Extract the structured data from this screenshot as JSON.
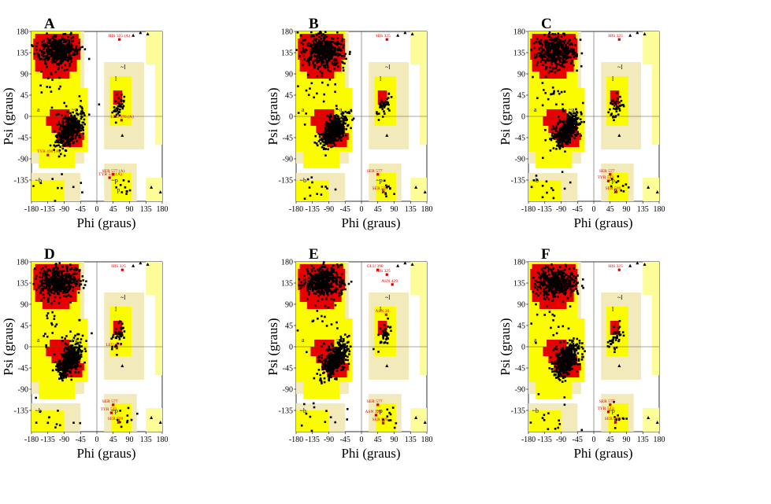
{
  "colors": {
    "core": "#e80000",
    "allowed": "#fcfc00",
    "generous": "#fcfc98",
    "faint": "#f2eabb",
    "outlier": "#d00000",
    "point": "#000000"
  },
  "axis": {
    "xlabel": "Phi (graus)",
    "ylabel": "Psi (graus)",
    "xticks": [
      "-180",
      "-135",
      "-90",
      "-45",
      "0",
      "45",
      "90",
      "135",
      "180"
    ],
    "yticks": [
      "180",
      "135",
      "90",
      "45",
      "0",
      "-45",
      "-90",
      "-135"
    ]
  },
  "chart_data": [
    {
      "type": "scatter",
      "panel": "A",
      "xlabel": "Phi (graus)",
      "ylabel": "Psi (graus)",
      "xlim": [
        -180,
        180
      ],
      "ylim": [
        -180,
        180
      ],
      "region_labels": [
        "b",
        "a",
        "l",
        "~b",
        "~l",
        "~a",
        "~p",
        "p"
      ],
      "outliers": [
        {
          "label": "HIS 325 (A)",
          "phi": 62,
          "psi": 163
        },
        {
          "label": "TYR 490 (A)",
          "phi": -135,
          "psi": -82
        },
        {
          "label": "SER 577 (A)",
          "phi": 45,
          "psi": -123
        },
        {
          "label": "TYR 543 (A)",
          "phi": 35,
          "psi": -130
        },
        {
          "label": "LEU 576 (A)",
          "phi": 68,
          "psi": -8
        }
      ]
    },
    {
      "type": "scatter",
      "panel": "B",
      "xlabel": "Phi (graus)",
      "ylabel": "Psi (graus)",
      "xlim": [
        -180,
        180
      ],
      "ylim": [
        -180,
        180
      ],
      "region_labels": [
        "b",
        "a",
        "l",
        "~b",
        "~l",
        "~a",
        "~p",
        "p"
      ],
      "outliers": [
        {
          "label": "HIS 325",
          "phi": 70,
          "psi": 163
        },
        {
          "label": "SER 577",
          "phi": 45,
          "psi": -123
        },
        {
          "label": "SER 599",
          "phi": 60,
          "psi": -160
        }
      ]
    },
    {
      "type": "scatter",
      "panel": "C",
      "xlabel": "Phi (graus)",
      "ylabel": "Psi (graus)",
      "xlim": [
        -180,
        180
      ],
      "ylim": [
        -180,
        180
      ],
      "region_labels": [
        "b",
        "a",
        "l",
        "~b",
        "~l",
        "~a",
        "~p",
        "p"
      ],
      "outliers": [
        {
          "label": "HIS 325",
          "phi": 70,
          "psi": 163
        },
        {
          "label": "SER 577",
          "phi": 45,
          "psi": -123
        },
        {
          "label": "TYR 543",
          "phi": 40,
          "psi": -137
        },
        {
          "label": "SER 599",
          "phi": 62,
          "psi": -160
        }
      ]
    },
    {
      "type": "scatter",
      "panel": "D",
      "xlabel": "Phi (graus)",
      "ylabel": "Psi (graus)",
      "xlim": [
        -180,
        180
      ],
      "ylim": [
        -180,
        180
      ],
      "region_labels": [
        "b",
        "a",
        "l",
        "~b",
        "~l",
        "~a",
        "~p",
        "p"
      ],
      "outliers": [
        {
          "label": "HIS 325",
          "phi": 70,
          "psi": 163
        },
        {
          "label": "LEU 576",
          "phi": 55,
          "psi": -3
        },
        {
          "label": "SER 577",
          "phi": 45,
          "psi": -123
        },
        {
          "label": "TYR 543",
          "phi": 40,
          "psi": -140
        },
        {
          "label": "SER 599",
          "phi": 60,
          "psi": -160
        }
      ]
    },
    {
      "type": "scatter",
      "panel": "E",
      "xlabel": "Phi (graus)",
      "ylabel": "Psi (graus)",
      "xlim": [
        -180,
        180
      ],
      "ylim": [
        -180,
        180
      ],
      "region_labels": [
        "b",
        "a",
        "l",
        "~b",
        "~l",
        "~a",
        "~p",
        "p"
      ],
      "outliers": [
        {
          "label": "GLU 398",
          "phi": 45,
          "psi": 163
        },
        {
          "label": "HIS 325",
          "phi": 70,
          "psi": 153
        },
        {
          "label": "ASN 429",
          "phi": 85,
          "psi": 132
        },
        {
          "label": "ASN 36",
          "phi": 68,
          "psi": 68
        },
        {
          "label": "SER 577",
          "phi": 45,
          "psi": -123
        },
        {
          "label": "ASN 320",
          "phi": 40,
          "psi": -145
        },
        {
          "label": "SER 599",
          "phi": 60,
          "psi": -162
        }
      ]
    },
    {
      "type": "scatter",
      "panel": "F",
      "xlabel": "Phi (graus)",
      "ylabel": "Psi (graus)",
      "xlim": [
        -180,
        180
      ],
      "ylim": [
        -180,
        180
      ],
      "region_labels": [
        "b",
        "a",
        "l",
        "~b",
        "~l",
        "~a",
        "~p",
        "p"
      ],
      "outliers": [
        {
          "label": "HIS 325",
          "phi": 70,
          "psi": 163
        },
        {
          "label": "SER 577",
          "phi": 45,
          "psi": -123
        },
        {
          "label": "TYR 543",
          "phi": 40,
          "psi": -138
        },
        {
          "label": "SER 599",
          "phi": 60,
          "psi": -160
        }
      ]
    }
  ]
}
